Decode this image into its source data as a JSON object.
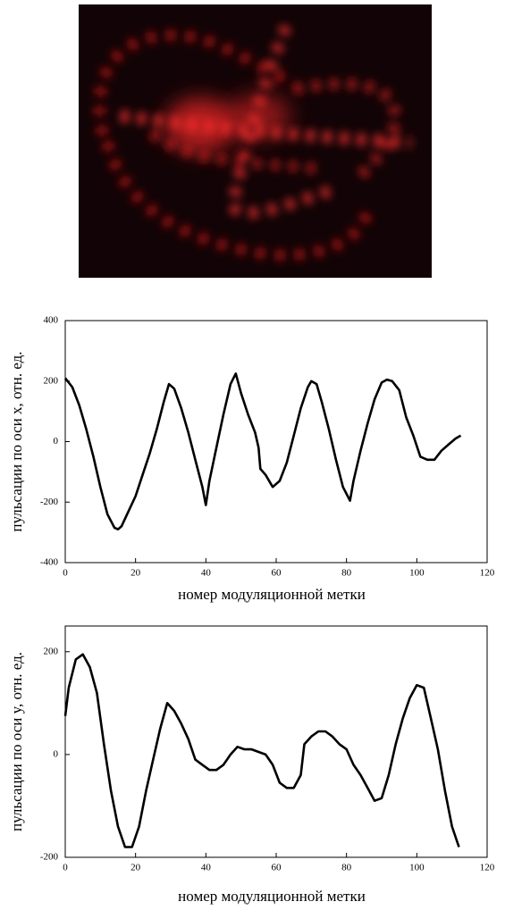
{
  "chart_data": [
    {
      "type": "line",
      "xlabel": "номер модуляционной метки",
      "ylabel": "пульсации по оси x, отн. ед.",
      "color": "#000000",
      "x": [
        0,
        2,
        4,
        6,
        8,
        10,
        12,
        14,
        15,
        16,
        18,
        20,
        22,
        24,
        26,
        28,
        29.5,
        31,
        33,
        35,
        37,
        39,
        40,
        41,
        43,
        45,
        47,
        48.5,
        50,
        52,
        54,
        55,
        55.5,
        57,
        59,
        61,
        63,
        65,
        67,
        69,
        70,
        71.5,
        73,
        75,
        77,
        79,
        81,
        82,
        84,
        86,
        88,
        90,
        91.5,
        93,
        95,
        97,
        99,
        101,
        103,
        105,
        107,
        109,
        111,
        112.5
      ],
      "values": [
        210,
        180,
        120,
        40,
        -50,
        -150,
        -240,
        -285,
        -290,
        -280,
        -230,
        -180,
        -110,
        -40,
        40,
        130,
        190,
        175,
        110,
        30,
        -60,
        -150,
        -210,
        -130,
        -20,
        90,
        190,
        225,
        160,
        90,
        30,
        -20,
        -90,
        -110,
        -150,
        -130,
        -70,
        20,
        110,
        180,
        200,
        190,
        130,
        40,
        -60,
        -150,
        -195,
        -130,
        -30,
        60,
        140,
        195,
        205,
        200,
        170,
        80,
        20,
        -50,
        -60,
        -60,
        -30,
        -10,
        10,
        20
      ],
      "xlim": [
        0,
        120
      ],
      "xticks": [
        0,
        20,
        40,
        60,
        80,
        100,
        120
      ],
      "ylim": [
        -400,
        400
      ],
      "yticks": [
        -400,
        -200,
        0,
        200,
        400
      ]
    },
    {
      "type": "line",
      "xlabel": "номер модуляционной метки",
      "ylabel": "пульсации по оси y, отн. ед.",
      "color": "#000000",
      "x": [
        0,
        1,
        3,
        5,
        7,
        9,
        11,
        13,
        15,
        17,
        19,
        21,
        23,
        25,
        27,
        29,
        31,
        33,
        35,
        37,
        39,
        41,
        43,
        45,
        47,
        49,
        51,
        53,
        55,
        57,
        59,
        61,
        63,
        65,
        67,
        68,
        70,
        72,
        74,
        76,
        78,
        80,
        82,
        84,
        86,
        88,
        90,
        92,
        94,
        96,
        98,
        100,
        102,
        104,
        106,
        108,
        110,
        112
      ],
      "values": [
        75,
        130,
        185,
        195,
        170,
        120,
        20,
        -70,
        -140,
        -180,
        -180,
        -140,
        -70,
        -10,
        50,
        100,
        85,
        60,
        30,
        -10,
        -20,
        -30,
        -30,
        -20,
        0,
        15,
        10,
        10,
        5,
        0,
        -20,
        -55,
        -65,
        -65,
        -40,
        20,
        35,
        45,
        45,
        35,
        20,
        10,
        -20,
        -40,
        -65,
        -90,
        -85,
        -40,
        20,
        70,
        110,
        135,
        130,
        70,
        10,
        -70,
        -140,
        -180
      ],
      "xlim": [
        0,
        120
      ],
      "xticks": [
        0,
        20,
        40,
        60,
        80,
        100,
        120
      ],
      "ylim": [
        -200,
        250
      ],
      "yticks": [
        -200,
        0,
        200
      ]
    }
  ]
}
